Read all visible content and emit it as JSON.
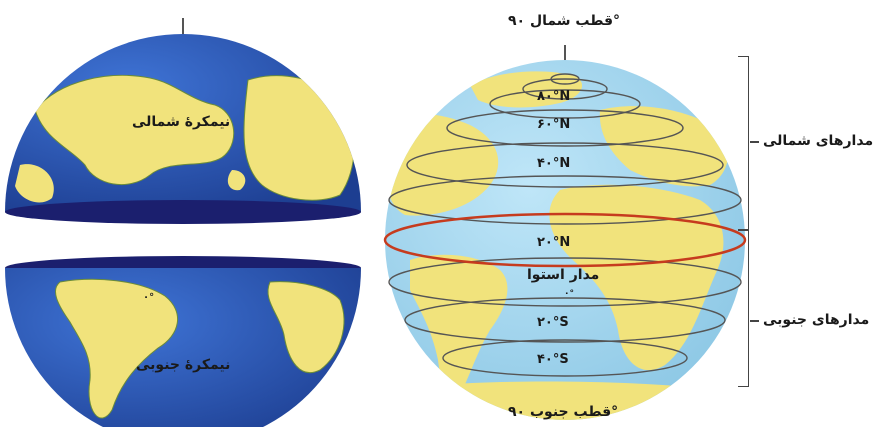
{
  "left_figure": {
    "northern_hemisphere_label": "نیمکرهٔ شمالی",
    "southern_hemisphere_label": "نیمکرهٔ جنوبی",
    "equator_degree": "۰°"
  },
  "right_figure": {
    "north_pole_label": "قطب شمال ۹۰°",
    "south_pole_label": "قطب جنوب ۹۰°",
    "equator_label": "مدار استوا",
    "equator_degree": "۰°",
    "latitudes": [
      "۸۰°N",
      "۶۰°N",
      "۴۰°N",
      "۲۰°N",
      "۲۰°S",
      "۴۰°S"
    ]
  },
  "brackets": {
    "northern": "مدارهای شمالی",
    "southern": "مدارهای جنوبی"
  },
  "colors": {
    "ocean_light": "#9fd3ec",
    "land_yellow": "#f1e37c",
    "ocean_dark": "#2a52b0",
    "equator_red": "#c63b1e",
    "cut_face": "#1b1f6e"
  }
}
